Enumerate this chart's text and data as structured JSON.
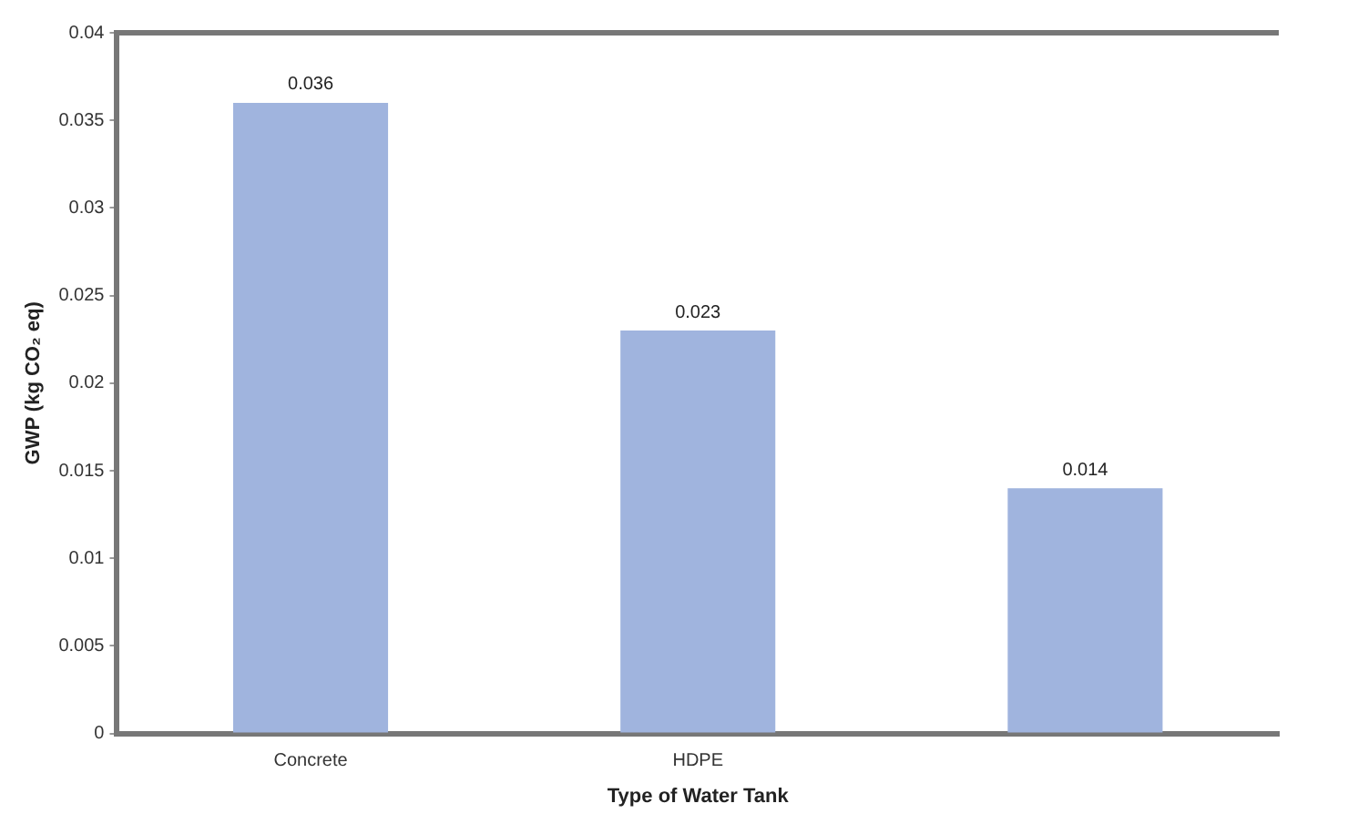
{
  "chart_data": {
    "type": "bar",
    "categories": [
      "Concrete",
      "HDPE",
      null
    ],
    "values": [
      0.036,
      0.023,
      0.014
    ],
    "color": "#a0b4de",
    "ylim": [
      0,
      0.04
    ],
    "yticks": [
      0,
      0.005,
      0.01,
      0.015,
      0.02,
      0.025,
      0.03,
      0.035,
      0.04
    ],
    "xlabel": "Type of Water Tank",
    "ylabel": "GWP (kg CO₂ eq)",
    "data_labels": true,
    "grid": false,
    "legend": false
  }
}
